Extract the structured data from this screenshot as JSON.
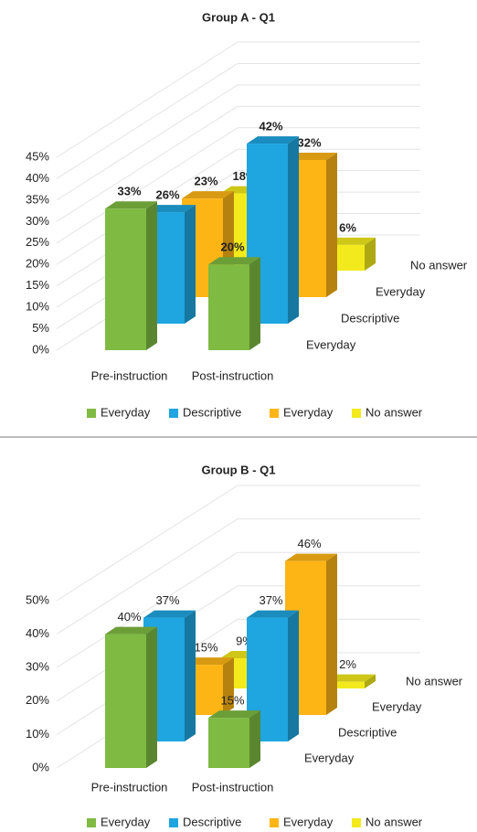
{
  "chart_data": [
    {
      "type": "bar",
      "title": "Group A - Q1",
      "categories": [
        "Pre-instruction",
        "Post-instruction"
      ],
      "series": [
        {
          "name": "Everyday",
          "color": "#7fba42",
          "values": [
            33,
            20
          ],
          "value_labels": [
            "33%",
            "20%"
          ]
        },
        {
          "name": "Descriptive",
          "color": "#1fa5e0",
          "values": [
            26,
            42
          ],
          "value_labels": [
            "26%",
            "42%"
          ]
        },
        {
          "name": "Everyday",
          "color": "#fdb515",
          "values": [
            23,
            32
          ],
          "value_labels": [
            "23%",
            "32%"
          ]
        },
        {
          "name": "No answer",
          "color": "#f2ea1c",
          "values": [
            18,
            6
          ],
          "value_labels": [
            "18%",
            "6%"
          ]
        }
      ],
      "ylim": [
        0,
        45
      ],
      "yticks": [
        {
          "value": 0,
          "label": "0%"
        },
        {
          "value": 5,
          "label": "5%"
        },
        {
          "value": 10,
          "label": "10%"
        },
        {
          "value": 15,
          "label": "15%"
        },
        {
          "value": 20,
          "label": "20%"
        },
        {
          "value": 25,
          "label": "25%"
        },
        {
          "value": 30,
          "label": "30%"
        },
        {
          "value": 35,
          "label": "35%"
        },
        {
          "value": 40,
          "label": "40%"
        },
        {
          "value": 45,
          "label": "45%"
        }
      ],
      "grid": true,
      "legend": "bottom"
    },
    {
      "type": "bar",
      "title": "Group B - Q1",
      "categories": [
        "Pre-instruction",
        "Post-instruction"
      ],
      "series": [
        {
          "name": "Everyday",
          "color": "#7fba42",
          "values": [
            40,
            15
          ],
          "value_labels": [
            "40%",
            "15%"
          ]
        },
        {
          "name": "Descriptive",
          "color": "#1fa5e0",
          "values": [
            37,
            37
          ],
          "value_labels": [
            "37%",
            "37%"
          ]
        },
        {
          "name": "Everyday",
          "color": "#fdb515",
          "values": [
            15,
            46
          ],
          "value_labels": [
            "15%",
            "46%"
          ]
        },
        {
          "name": "No answer",
          "color": "#f2ea1c",
          "values": [
            9,
            2
          ],
          "value_labels": [
            "9%",
            "2%"
          ]
        }
      ],
      "ylim": [
        0,
        50
      ],
      "yticks": [
        {
          "value": 0,
          "label": "0%"
        },
        {
          "value": 10,
          "label": "10%"
        },
        {
          "value": 20,
          "label": "20%"
        },
        {
          "value": 30,
          "label": "30%"
        },
        {
          "value": 40,
          "label": "40%"
        },
        {
          "value": 50,
          "label": "50%"
        }
      ],
      "grid": true,
      "legend": "bottom"
    }
  ]
}
